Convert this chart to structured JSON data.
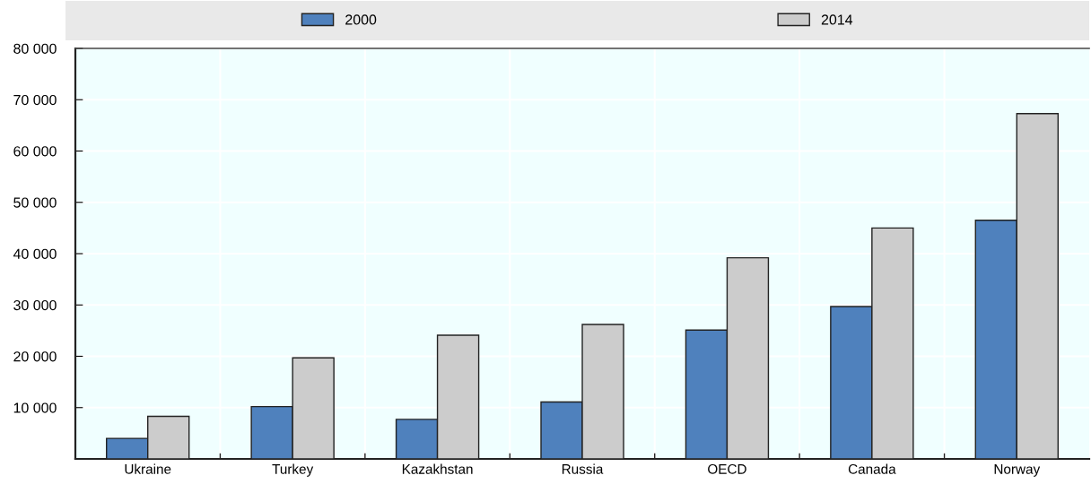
{
  "chart_data": {
    "type": "bar",
    "categories": [
      "Ukraine",
      "Turkey",
      "Kazakhstan",
      "Russia",
      "OECD",
      "Canada",
      "Norway"
    ],
    "series": [
      {
        "name": "2000",
        "color": "#4f81bd",
        "values": [
          4000,
          10200,
          7700,
          11100,
          25100,
          29700,
          46500
        ]
      },
      {
        "name": "2014",
        "color": "#cccccc",
        "values": [
          8300,
          19700,
          24100,
          26200,
          39200,
          45000,
          67300
        ]
      }
    ],
    "ylim": [
      0,
      80000
    ],
    "yticks": [
      {
        "value": 10000,
        "label": "10 000"
      },
      {
        "value": 20000,
        "label": "20 000"
      },
      {
        "value": 30000,
        "label": "30 000"
      },
      {
        "value": 40000,
        "label": "40 000"
      },
      {
        "value": 50000,
        "label": "50 000"
      },
      {
        "value": 60000,
        "label": "60 000"
      },
      {
        "value": 70000,
        "label": "70 000"
      },
      {
        "value": 80000,
        "label": "80 000"
      }
    ],
    "grid": true,
    "legend": "top"
  }
}
